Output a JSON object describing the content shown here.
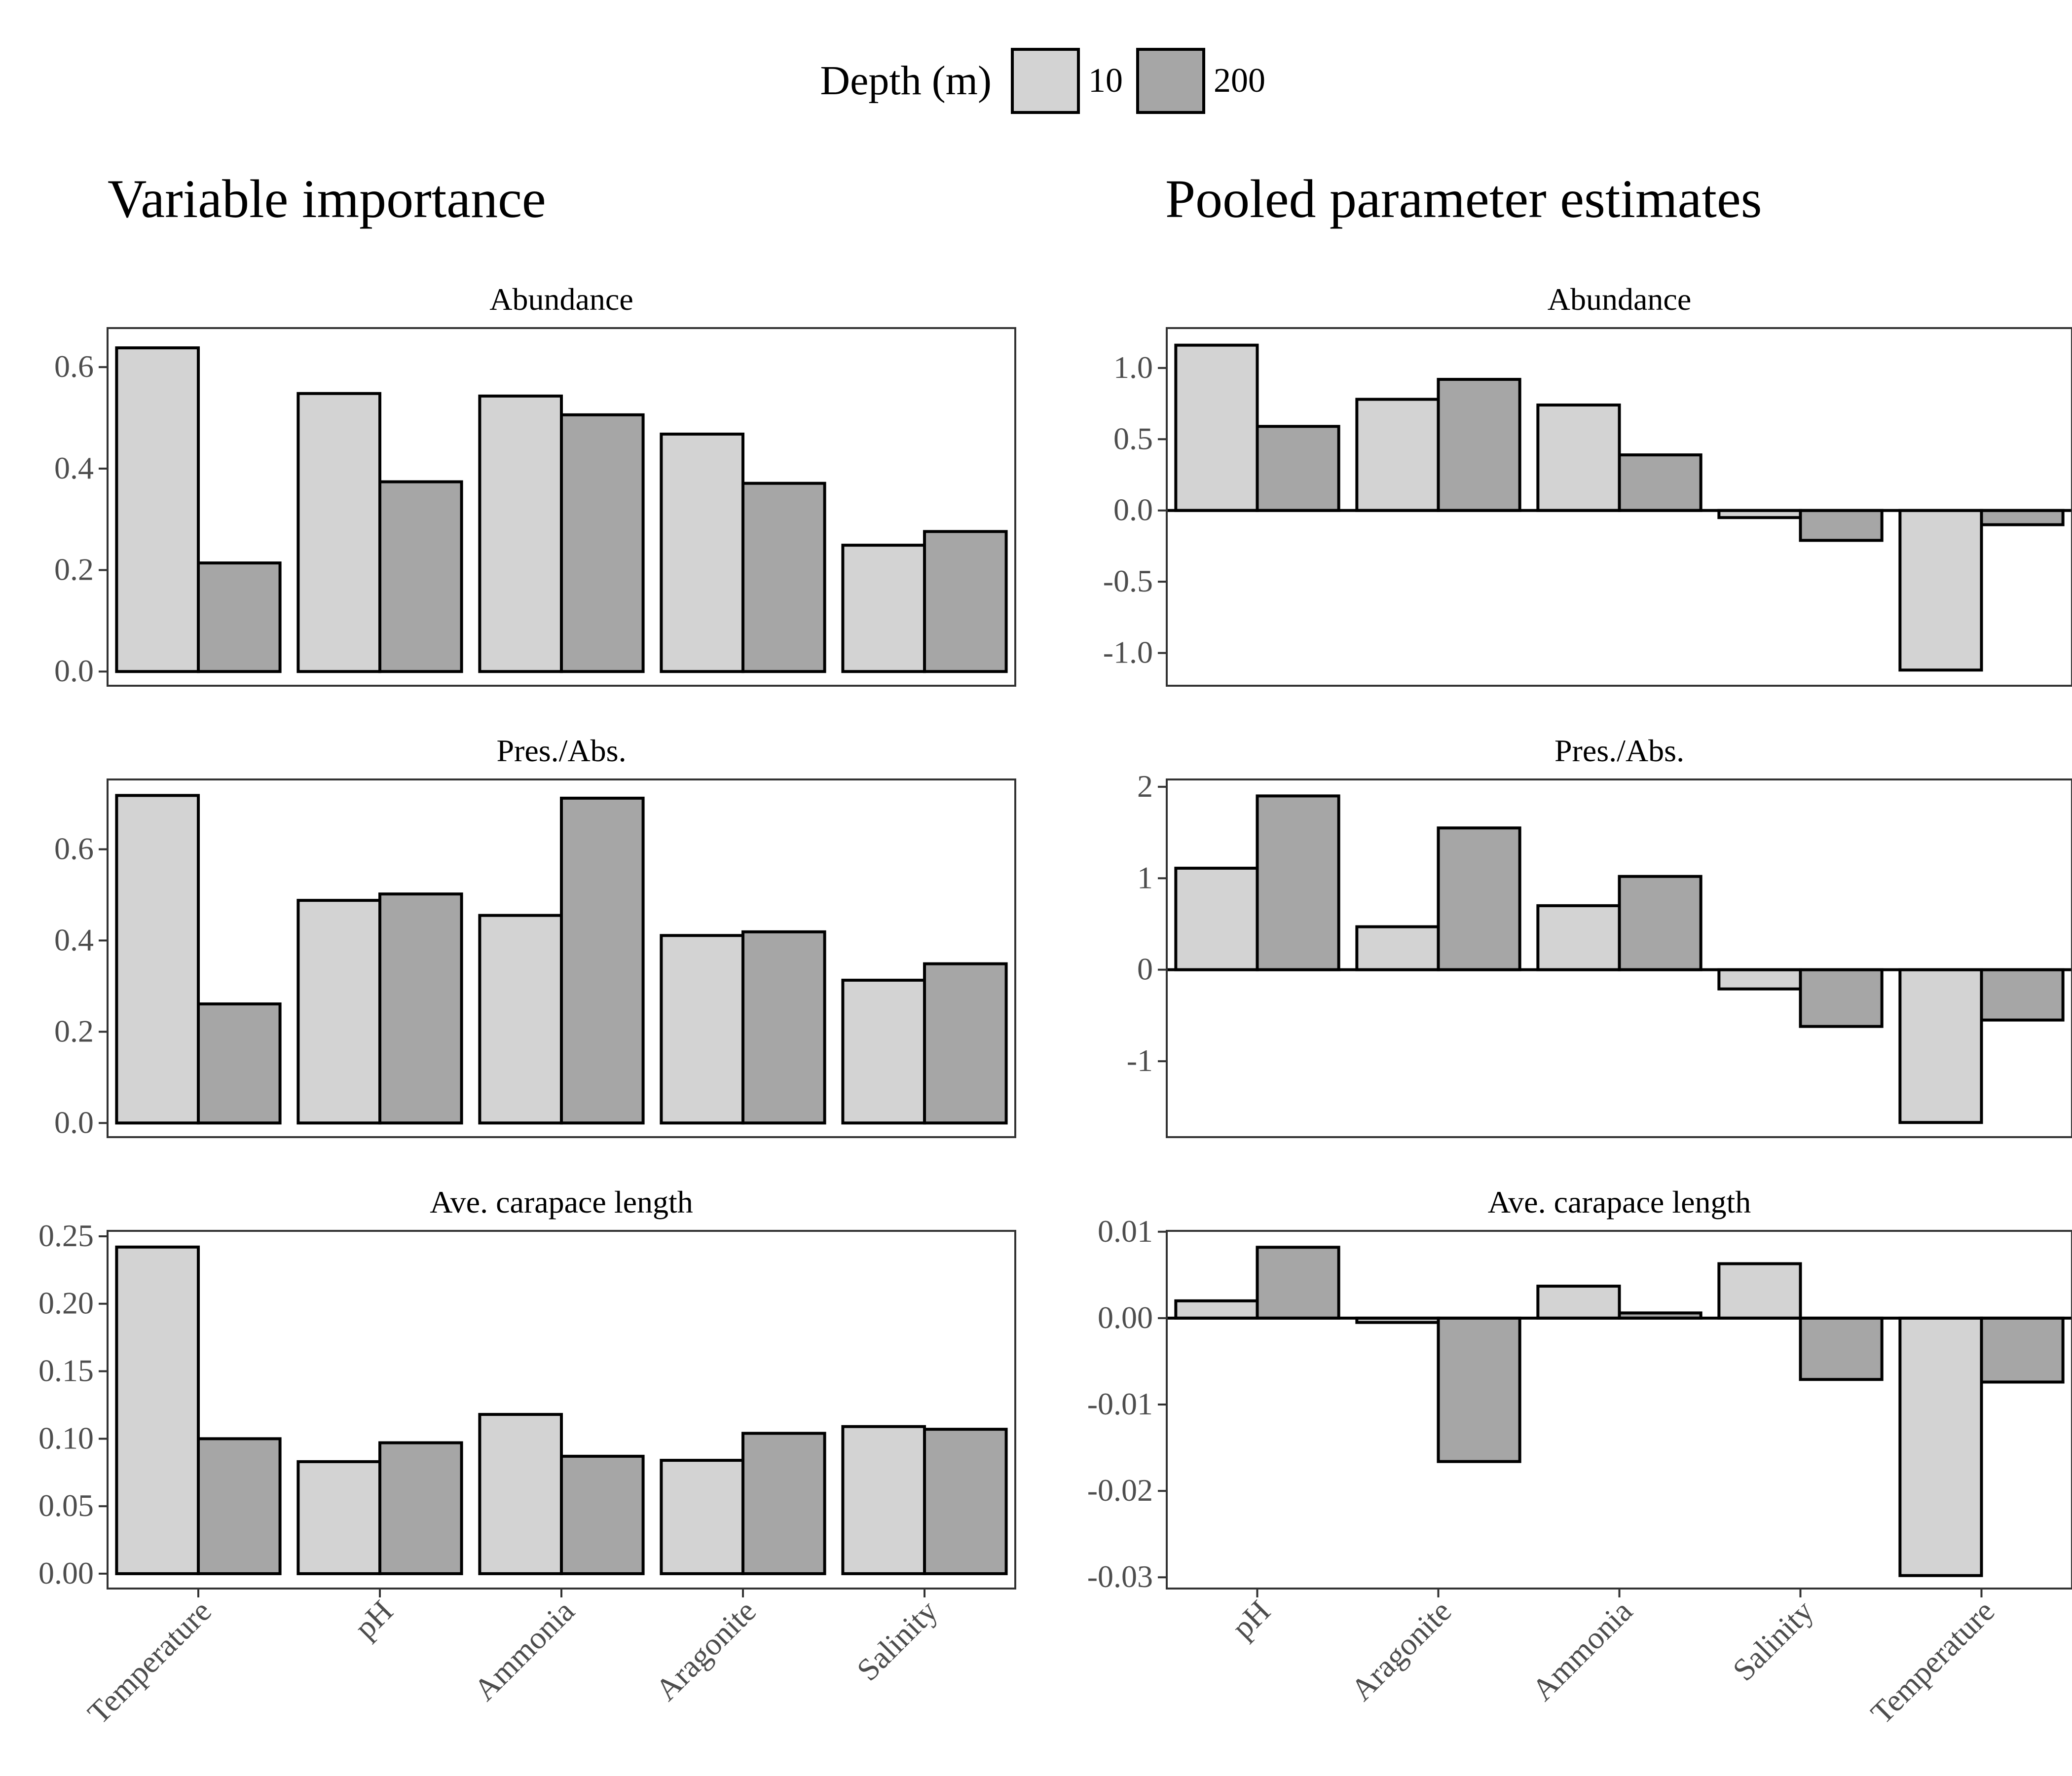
{
  "legend": {
    "title": "Depth (m)",
    "items": [
      {
        "label": "10",
        "color": "#d3d3d3"
      },
      {
        "label": "200",
        "color": "#a6a6a6"
      }
    ]
  },
  "columns": [
    {
      "title": "Variable importance"
    },
    {
      "title": "Pooled parameter estimates"
    }
  ],
  "chart_data": [
    {
      "type": "bar",
      "column": 0,
      "title": "Abundance",
      "categories": [
        "Temperature",
        "pH",
        "Ammonia",
        "Aragonite",
        "Salinity"
      ],
      "series": [
        {
          "name": "10",
          "values": [
            0.638,
            0.548,
            0.543,
            0.468,
            0.249
          ]
        },
        {
          "name": "200",
          "values": [
            0.214,
            0.374,
            0.506,
            0.371,
            0.276
          ]
        }
      ],
      "ylim": [
        -0.028,
        0.677
      ],
      "yticks": [
        0.0,
        0.2,
        0.4,
        0.6
      ],
      "tick_labels": [
        "0.0",
        "0.2",
        "0.4",
        "0.6"
      ]
    },
    {
      "type": "bar",
      "column": 0,
      "title": "Pres./Abs.",
      "categories": [
        "Temperature",
        "pH",
        "Ammonia",
        "Aragonite",
        "Salinity"
      ],
      "series": [
        {
          "name": "10",
          "values": [
            0.718,
            0.488,
            0.455,
            0.411,
            0.313
          ]
        },
        {
          "name": "200",
          "values": [
            0.261,
            0.502,
            0.712,
            0.419,
            0.349
          ]
        }
      ],
      "ylim": [
        -0.031,
        0.753
      ],
      "yticks": [
        0.0,
        0.2,
        0.4,
        0.6
      ],
      "tick_labels": [
        "0.0",
        "0.2",
        "0.4",
        "0.6"
      ]
    },
    {
      "type": "bar",
      "column": 0,
      "title": "Ave. carapace length",
      "categories": [
        "Temperature",
        "pH",
        "Ammonia",
        "Aragonite",
        "Salinity"
      ],
      "series": [
        {
          "name": "10",
          "values": [
            0.242,
            0.083,
            0.118,
            0.084,
            0.109
          ]
        },
        {
          "name": "200",
          "values": [
            0.1,
            0.097,
            0.087,
            0.104,
            0.107
          ]
        }
      ],
      "ylim": [
        -0.011,
        0.254
      ],
      "yticks": [
        0.0,
        0.05,
        0.1,
        0.15,
        0.2,
        0.25
      ],
      "tick_labels": [
        "0.00",
        "0.05",
        "0.10",
        "0.15",
        "0.20",
        "0.25"
      ]
    },
    {
      "type": "bar",
      "column": 1,
      "title": "Abundance",
      "categories": [
        "pH",
        "Aragonite",
        "Ammonia",
        "Salinity",
        "Temperature"
      ],
      "series": [
        {
          "name": "10",
          "values": [
            1.16,
            0.78,
            0.74,
            -0.05,
            -1.12
          ]
        },
        {
          "name": "200",
          "values": [
            0.59,
            0.92,
            0.39,
            -0.21,
            -0.1
          ]
        }
      ],
      "ylim": [
        -1.23,
        1.28
      ],
      "yticks": [
        -1.0,
        -0.5,
        0.0,
        0.5,
        1.0
      ],
      "tick_labels": [
        "-1.0",
        "-0.5",
        "0.0",
        "0.5",
        "1.0"
      ],
      "zero_line": true
    },
    {
      "type": "bar",
      "column": 1,
      "title": "Pres./Abs.",
      "categories": [
        "pH",
        "Aragonite",
        "Ammonia",
        "Salinity",
        "Temperature"
      ],
      "series": [
        {
          "name": "10",
          "values": [
            1.11,
            0.47,
            0.7,
            -0.21,
            -1.67
          ]
        },
        {
          "name": "200",
          "values": [
            1.9,
            1.55,
            1.02,
            -0.62,
            -0.55
          ]
        }
      ],
      "ylim": [
        -1.83,
        2.08
      ],
      "yticks": [
        -1,
        0,
        1,
        2
      ],
      "tick_labels": [
        "-1",
        "0",
        "1",
        "2"
      ],
      "zero_line": true
    },
    {
      "type": "bar",
      "column": 1,
      "title": "Ave. carapace length",
      "categories": [
        "pH",
        "Aragonite",
        "Ammonia",
        "Salinity",
        "Temperature"
      ],
      "series": [
        {
          "name": "10",
          "values": [
            0.002,
            -0.0005,
            0.0037,
            0.0063,
            -0.0298
          ]
        },
        {
          "name": "200",
          "values": [
            0.0082,
            -0.0166,
            0.0006,
            -0.0071,
            -0.0074
          ]
        }
      ],
      "ylim": [
        -0.0313,
        0.0101
      ],
      "yticks": [
        -0.03,
        -0.02,
        -0.01,
        0.0,
        0.01
      ],
      "tick_labels": [
        "-0.03",
        "-0.02",
        "-0.01",
        "0.00",
        "0.01"
      ],
      "zero_line": true
    }
  ]
}
